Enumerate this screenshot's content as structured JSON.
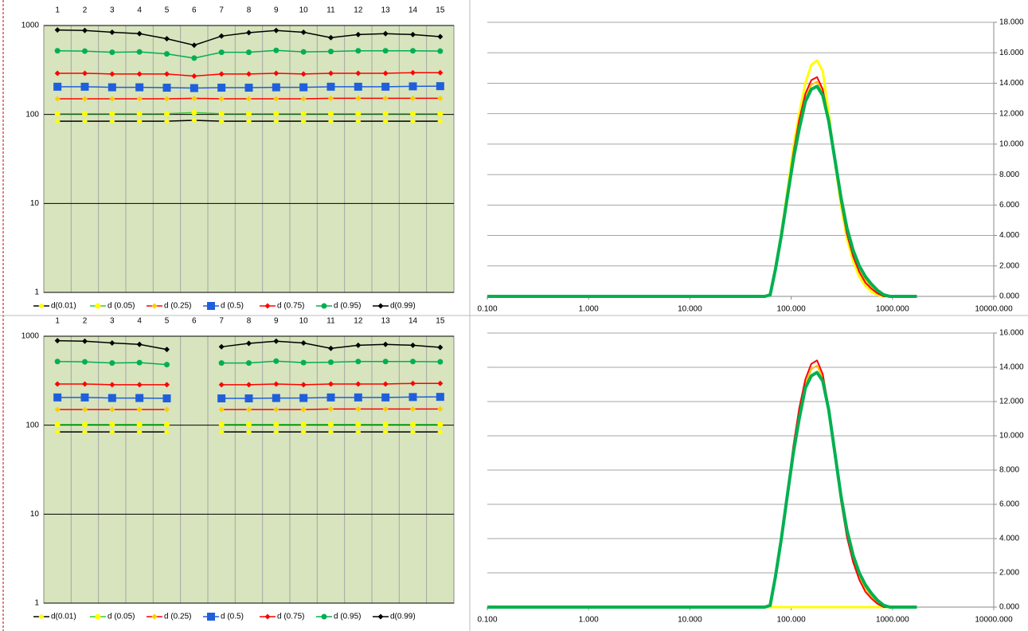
{
  "chart_data": [
    {
      "type": "line",
      "yscale": "log",
      "categories": [
        "1",
        "2",
        "3",
        "4",
        "5",
        "6",
        "7",
        "8",
        "9",
        "10",
        "11",
        "12",
        "13",
        "14",
        "15"
      ],
      "ylim": [
        1,
        1000
      ],
      "yticks": [
        1,
        10,
        100,
        1000
      ],
      "grid": true,
      "legend": "bottom",
      "plot_color": "#d7e4bd",
      "series": [
        {
          "name": "d(0.01)",
          "color": "#000000",
          "marker": "diamond",
          "marker_color": "#ffff00",
          "values": [
            84,
            84,
            84,
            84,
            84,
            86,
            84,
            84,
            84,
            84,
            84,
            84,
            84,
            84,
            84
          ]
        },
        {
          "name": "d (0.05)",
          "color": "#33cc33",
          "marker": "circle",
          "marker_color": "#ffff00",
          "values": [
            102,
            102,
            102,
            102,
            102,
            105,
            102,
            102,
            102,
            102,
            102,
            102,
            102,
            102,
            102
          ]
        },
        {
          "name": "d (0.25)",
          "color": "#ff0000",
          "marker": "diamond",
          "marker_color": "#ffcc00",
          "values": [
            150,
            150,
            150,
            150,
            150,
            152,
            150,
            150,
            150,
            150,
            152,
            152,
            152,
            152,
            152
          ]
        },
        {
          "name": "d (0.5)",
          "color": "#1f5fdc",
          "marker": "square",
          "marker_color": "#1f5fdc",
          "values": [
            205,
            205,
            202,
            202,
            200,
            198,
            200,
            200,
            202,
            202,
            205,
            205,
            205,
            207,
            208
          ]
        },
        {
          "name": "d (0.75)",
          "color": "#ff0000",
          "marker": "diamond",
          "marker_color": "#ff0000",
          "values": [
            290,
            290,
            285,
            285,
            285,
            270,
            285,
            285,
            290,
            285,
            290,
            290,
            290,
            295,
            295
          ]
        },
        {
          "name": "d (0.95)",
          "color": "#00b050",
          "marker": "circle",
          "marker_color": "#00b050",
          "values": [
            520,
            515,
            500,
            505,
            480,
            430,
            500,
            500,
            525,
            505,
            510,
            520,
            520,
            520,
            515
          ]
        },
        {
          "name": "d(0.99)",
          "color": "#000000",
          "marker": "diamond",
          "marker_color": "#000000",
          "values": [
            890,
            880,
            840,
            810,
            710,
            600,
            760,
            830,
            880,
            840,
            730,
            790,
            810,
            790,
            750
          ]
        }
      ]
    },
    {
      "type": "line",
      "xscale": "log",
      "y_axis_side": "right",
      "grid": true,
      "x": [
        0.1,
        55,
        62,
        70,
        80,
        92,
        105,
        120,
        138,
        158,
        180,
        205,
        235,
        270,
        310,
        355,
        410,
        470,
        540,
        620,
        710,
        820,
        940,
        1740
      ],
      "xlim": [
        0.1,
        10000
      ],
      "xticks": [
        {
          "value": 0.1,
          "label": "0.100"
        },
        {
          "value": 1,
          "label": "1.000"
        },
        {
          "value": 10,
          "label": "10.000"
        },
        {
          "value": 100,
          "label": "100.000"
        },
        {
          "value": 1000,
          "label": "1000.000"
        },
        {
          "value": 10000,
          "label": "10000.000"
        }
      ],
      "ylim": [
        0,
        18
      ],
      "yticks": [
        {
          "value": 0,
          "label": "0.000"
        },
        {
          "value": 2,
          "label": "2.000"
        },
        {
          "value": 4,
          "label": "4.000"
        },
        {
          "value": 6,
          "label": "6.000"
        },
        {
          "value": 8,
          "label": "8.000"
        },
        {
          "value": 10,
          "label": "10.000"
        },
        {
          "value": 12,
          "label": "12.000"
        },
        {
          "value": 14,
          "label": "14.000"
        },
        {
          "value": 16,
          "label": "16.000"
        },
        {
          "value": 18,
          "label": "18.000"
        }
      ],
      "series": [
        {
          "color": "#ffff00",
          "line_width": 3,
          "values": [
            0,
            0,
            0.1,
            1.8,
            4.2,
            7,
            9.8,
            12,
            14,
            15.2,
            15.5,
            14.8,
            12,
            8.8,
            6,
            3.8,
            2.3,
            1.3,
            0.7,
            0.3,
            0.1,
            0,
            0,
            0
          ]
        },
        {
          "color": "#ffc000",
          "line_width": 2,
          "values": [
            0,
            0,
            0.1,
            1.8,
            4.1,
            6.7,
            9.2,
            11.3,
            13,
            13.9,
            14.1,
            13.4,
            11.5,
            8.9,
            6.3,
            4.3,
            2.8,
            1.8,
            1.1,
            0.6,
            0.3,
            0.1,
            0,
            0
          ]
        },
        {
          "color": "#ff0000",
          "line_width": 2,
          "values": [
            0,
            0,
            0.1,
            1.8,
            4.1,
            6.8,
            9.4,
            11.6,
            13.3,
            14.2,
            14.4,
            13.6,
            11.6,
            8.9,
            6.2,
            4.1,
            2.6,
            1.6,
            0.9,
            0.5,
            0.2,
            0,
            0,
            0
          ]
        },
        {
          "color": "#00b050",
          "line_width": 4,
          "values": [
            0,
            0,
            0.1,
            1.8,
            4,
            6.6,
            9,
            11,
            12.8,
            13.6,
            13.8,
            13.2,
            11.5,
            9,
            6.5,
            4.5,
            3,
            2,
            1.3,
            0.8,
            0.4,
            0.1,
            0,
            0
          ]
        }
      ]
    },
    {
      "type": "line",
      "yscale": "log",
      "categories": [
        "1",
        "2",
        "3",
        "4",
        "5",
        "6",
        "7",
        "8",
        "9",
        "10",
        "11",
        "12",
        "13",
        "14",
        "15"
      ],
      "ylim": [
        1,
        1000
      ],
      "yticks": [
        1,
        10,
        100,
        1000
      ],
      "grid": true,
      "legend": "bottom",
      "plot_color": "#d7e4bd",
      "series": [
        {
          "name": "d(0.01)",
          "color": "#000000",
          "marker": "diamond",
          "marker_color": "#ffff00",
          "values": [
            84,
            84,
            84,
            84,
            84,
            null,
            84,
            84,
            84,
            84,
            84,
            84,
            84,
            84,
            84
          ]
        },
        {
          "name": "d (0.05)",
          "color": "#33cc33",
          "marker": "circle",
          "marker_color": "#ffff00",
          "values": [
            102,
            102,
            102,
            102,
            102,
            null,
            102,
            102,
            102,
            102,
            102,
            102,
            102,
            102,
            102
          ]
        },
        {
          "name": "d (0.25)",
          "color": "#ff0000",
          "marker": "diamond",
          "marker_color": "#ffcc00",
          "values": [
            150,
            150,
            150,
            150,
            150,
            null,
            150,
            150,
            150,
            150,
            152,
            152,
            152,
            152,
            152
          ]
        },
        {
          "name": "d (0.5)",
          "color": "#1f5fdc",
          "marker": "square",
          "marker_color": "#1f5fdc",
          "values": [
            205,
            205,
            202,
            202,
            200,
            null,
            200,
            200,
            202,
            202,
            205,
            205,
            205,
            207,
            208
          ]
        },
        {
          "name": "d (0.75)",
          "color": "#ff0000",
          "marker": "diamond",
          "marker_color": "#ff0000",
          "values": [
            290,
            290,
            285,
            285,
            285,
            null,
            285,
            285,
            290,
            285,
            290,
            290,
            290,
            295,
            295
          ]
        },
        {
          "name": "d (0.95)",
          "color": "#00b050",
          "marker": "circle",
          "marker_color": "#00b050",
          "values": [
            520,
            515,
            500,
            505,
            480,
            null,
            500,
            500,
            525,
            505,
            510,
            520,
            520,
            520,
            515
          ]
        },
        {
          "name": "d(0.99)",
          "color": "#000000",
          "marker": "diamond",
          "marker_color": "#000000",
          "values": [
            890,
            880,
            840,
            810,
            710,
            null,
            760,
            830,
            880,
            840,
            730,
            790,
            810,
            790,
            750
          ]
        }
      ]
    },
    {
      "type": "line",
      "xscale": "log",
      "y_axis_side": "right",
      "grid": true,
      "x": [
        0.1,
        55,
        62,
        70,
        80,
        92,
        105,
        120,
        138,
        158,
        180,
        205,
        235,
        270,
        310,
        355,
        410,
        470,
        540,
        620,
        710,
        820,
        940,
        1740
      ],
      "xlim": [
        0.1,
        10000
      ],
      "xticks": [
        {
          "value": 0.1,
          "label": "0.100"
        },
        {
          "value": 1,
          "label": "1.000"
        },
        {
          "value": 10,
          "label": "10.000"
        },
        {
          "value": 100,
          "label": "100.000"
        },
        {
          "value": 1000,
          "label": "1000.000"
        },
        {
          "value": 10000,
          "label": "10000.000"
        }
      ],
      "ylim": [
        0,
        16
      ],
      "yticks": [
        {
          "value": 0,
          "label": "0.000"
        },
        {
          "value": 2,
          "label": "2.000"
        },
        {
          "value": 4,
          "label": "4.000"
        },
        {
          "value": 6,
          "label": "6.000"
        },
        {
          "value": 8,
          "label": "8.000"
        },
        {
          "value": 10,
          "label": "10.000"
        },
        {
          "value": 12,
          "label": "12.000"
        },
        {
          "value": 14,
          "label": "14.000"
        },
        {
          "value": 16,
          "label": "16.000"
        }
      ],
      "series": [
        {
          "color": "#ffff00",
          "line_width": 3,
          "values": [
            0,
            0,
            0,
            0,
            0,
            0,
            0,
            0,
            0,
            0,
            0,
            0,
            0,
            0,
            0,
            0,
            0,
            0,
            0,
            0,
            0,
            0,
            0,
            0
          ]
        },
        {
          "color": "#ffc000",
          "line_width": 2,
          "values": [
            0,
            0,
            0.1,
            1.8,
            4.1,
            6.7,
            9.2,
            11.3,
            13,
            13.9,
            14.1,
            13.4,
            11.5,
            8.9,
            6.3,
            4.3,
            2.8,
            1.8,
            1.1,
            0.6,
            0.3,
            0.1,
            0,
            0
          ]
        },
        {
          "color": "#ff0000",
          "line_width": 2,
          "values": [
            0,
            0,
            0.1,
            1.8,
            4.1,
            6.8,
            9.4,
            11.6,
            13.3,
            14.2,
            14.4,
            13.6,
            11.6,
            8.9,
            6.2,
            4.1,
            2.6,
            1.6,
            0.9,
            0.5,
            0.2,
            0,
            0,
            0
          ]
        },
        {
          "color": "#00b050",
          "line_width": 4,
          "values": [
            0,
            0,
            0.1,
            1.8,
            4,
            6.6,
            9,
            11,
            12.8,
            13.5,
            13.7,
            13.2,
            11.5,
            9,
            6.5,
            4.5,
            3,
            2,
            1.3,
            0.8,
            0.4,
            0.1,
            0,
            0
          ]
        }
      ]
    }
  ]
}
